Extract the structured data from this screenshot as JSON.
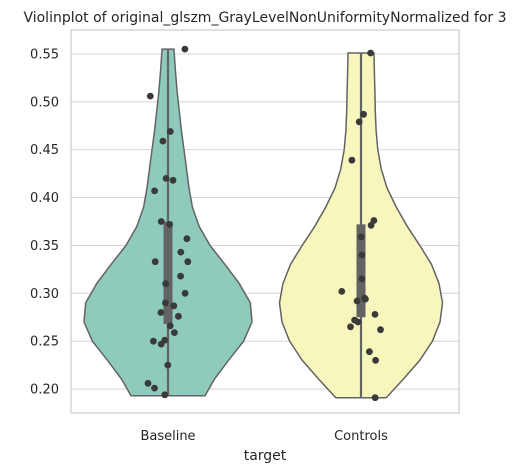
{
  "chart_data": {
    "type": "violin",
    "title": "Violinplot of original_glszm_GrayLevelNonUniformityNormalized for 3",
    "xlabel": "target",
    "ylabel": "",
    "categories": [
      "Baseline",
      "Controls"
    ],
    "ylim": [
      0.175,
      0.575
    ],
    "yticks": [
      0.2,
      0.25,
      0.3,
      0.35,
      0.4,
      0.45,
      0.5,
      0.55
    ],
    "ytick_labels": [
      "0.20",
      "0.25",
      "0.30",
      "0.35",
      "0.40",
      "0.45",
      "0.50",
      "0.55"
    ],
    "grid": true,
    "series": [
      {
        "category": "Baseline",
        "color": "#8ecbbd",
        "min": 0.193,
        "max": 0.555,
        "q1": 0.268,
        "median": 0.338,
        "q3": 0.375,
        "density": [
          [
            0.193,
            0.44
          ],
          [
            0.21,
            0.55
          ],
          [
            0.23,
            0.72
          ],
          [
            0.25,
            0.9
          ],
          [
            0.27,
            1.0
          ],
          [
            0.29,
            0.98
          ],
          [
            0.31,
            0.85
          ],
          [
            0.33,
            0.68
          ],
          [
            0.35,
            0.5
          ],
          [
            0.37,
            0.37
          ],
          [
            0.39,
            0.29
          ],
          [
            0.41,
            0.25
          ],
          [
            0.43,
            0.22
          ],
          [
            0.45,
            0.19
          ],
          [
            0.47,
            0.16
          ],
          [
            0.49,
            0.135
          ],
          [
            0.51,
            0.11
          ],
          [
            0.53,
            0.09
          ],
          [
            0.555,
            0.07
          ]
        ],
        "points": [
          0.555,
          0.506,
          0.469,
          0.459,
          0.42,
          0.418,
          0.407,
          0.375,
          0.372,
          0.357,
          0.343,
          0.333,
          0.333,
          0.318,
          0.31,
          0.3,
          0.29,
          0.287,
          0.28,
          0.276,
          0.266,
          0.259,
          0.251,
          0.25,
          0.247,
          0.225,
          0.206,
          0.201,
          0.194
        ]
      },
      {
        "category": "Controls",
        "color": "#f7f7bd",
        "min": 0.191,
        "max": 0.551,
        "q1": 0.275,
        "median": 0.322,
        "q3": 0.372,
        "density": [
          [
            0.191,
            0.3
          ],
          [
            0.21,
            0.5
          ],
          [
            0.23,
            0.7
          ],
          [
            0.25,
            0.85
          ],
          [
            0.27,
            0.94
          ],
          [
            0.29,
            0.97
          ],
          [
            0.31,
            0.93
          ],
          [
            0.33,
            0.84
          ],
          [
            0.35,
            0.7
          ],
          [
            0.37,
            0.55
          ],
          [
            0.39,
            0.42
          ],
          [
            0.41,
            0.31
          ],
          [
            0.43,
            0.24
          ],
          [
            0.45,
            0.2
          ],
          [
            0.47,
            0.18
          ],
          [
            0.49,
            0.17
          ],
          [
            0.51,
            0.165
          ],
          [
            0.53,
            0.16
          ],
          [
            0.551,
            0.155
          ]
        ],
        "points": [
          0.551,
          0.487,
          0.479,
          0.439,
          0.376,
          0.371,
          0.359,
          0.34,
          0.315,
          0.302,
          0.295,
          0.294,
          0.292,
          0.278,
          0.272,
          0.27,
          0.265,
          0.262,
          0.239,
          0.23,
          0.191
        ]
      }
    ]
  }
}
